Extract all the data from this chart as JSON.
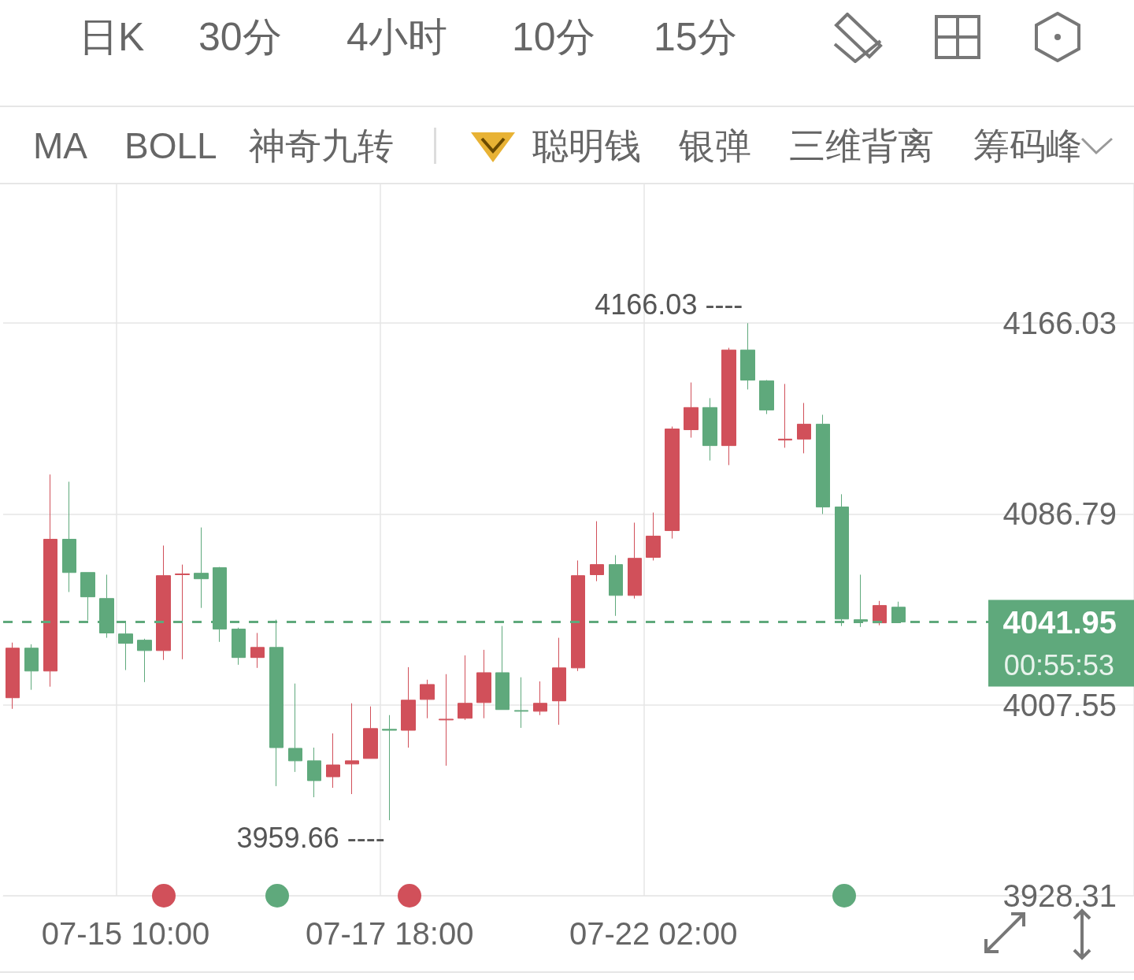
{
  "chart_data": {
    "type": "candlestick",
    "categories": [
      null,
      null,
      null,
      null,
      null,
      null,
      "07-15 10:00",
      null,
      null,
      null,
      null,
      null,
      null,
      null,
      null,
      null,
      null,
      null,
      null,
      null,
      "07-17 18:00",
      null,
      null,
      null,
      null,
      null,
      null,
      null,
      null,
      null,
      null,
      null,
      null,
      null,
      "07-22 02:00",
      null,
      null,
      null,
      null,
      null,
      null,
      null,
      null,
      null,
      null,
      null,
      null,
      null,
      null,
      null,
      null,
      null,
      null,
      null,
      null,
      null,
      null,
      null,
      null,
      null
    ],
    "ohlc": [
      [
        4010.5,
        4033.4,
        4005.9,
        4031.1
      ],
      [
        4031.1,
        4032.7,
        4013.8,
        4021.6
      ],
      [
        4021.6,
        4103.2,
        4015.1,
        4076.3
      ],
      [
        4076.3,
        4100.2,
        4054.4,
        4062.5
      ],
      [
        4062.5,
        4062.5,
        4042.6,
        4052.4
      ],
      [
        4051.7,
        4061.6,
        4035.4,
        4037.4
      ],
      [
        4037.0,
        4041.6,
        4022.0,
        4033.1
      ],
      [
        4034.4,
        4035.0,
        4017.0,
        4030.1
      ],
      [
        4030.1,
        4073.7,
        4026.2,
        4061.2
      ],
      [
        4061.6,
        4065.8,
        4026.5,
        4061.9
      ],
      [
        4062.2,
        4081.2,
        4047.8,
        4059.9
      ],
      [
        4064.5,
        4064.8,
        4033.7,
        4039.0
      ],
      [
        4039.0,
        4039.6,
        4024.2,
        4027.2
      ],
      [
        4027.2,
        4037.4,
        4022.9,
        4031.4
      ],
      [
        4031.4,
        4042.9,
        3973.8,
        3989.8
      ],
      [
        3989.5,
        4016.4,
        3979.7,
        3984.3
      ],
      [
        3984.3,
        3989.8,
        3969.2,
        3976.1
      ],
      [
        3977.7,
        3995.7,
        3973.1,
        3982.6
      ],
      [
        3983.0,
        4008.2,
        3970.5,
        3984.3
      ],
      [
        3985.3,
        4006.9,
        3985.3,
        3997.7
      ],
      [
        3997.4,
        4003.3,
        3959.66,
        3997.0
      ],
      [
        3997.0,
        4023.2,
        3989.8,
        4009.5
      ],
      [
        4009.8,
        4018.0,
        4002.0,
        4016.0
      ],
      [
        4001.3,
        4020.3,
        3982.3,
        4001.6
      ],
      [
        4002.0,
        4028.1,
        4001.3,
        4008.2
      ],
      [
        4008.5,
        4030.4,
        4002.0,
        4020.9
      ],
      [
        4020.9,
        4040.3,
        4005.6,
        4005.6
      ],
      [
        4005.2,
        4019.0,
        3998.0,
        4004.9
      ],
      [
        4004.9,
        4017.3,
        4003.3,
        4008.2
      ],
      [
        4009.2,
        4035.4,
        3999.3,
        4022.9
      ],
      [
        4022.9,
        4067.5,
        4021.6,
        4061.2
      ],
      [
        4061.6,
        4083.8,
        4058.9,
        4065.8
      ],
      [
        4065.8,
        4069.7,
        4044.5,
        4053.0
      ],
      [
        4053.0,
        4083.2,
        4051.7,
        4068.4
      ],
      [
        4068.8,
        4087.4,
        4067.5,
        4077.6
      ],
      [
        4079.9,
        4123.1,
        4076.6,
        4122.1
      ],
      [
        4121.8,
        4141.4,
        4118.5,
        4131.0
      ],
      [
        4131.0,
        4134.9,
        4109.0,
        4115.2
      ],
      [
        4115.2,
        4155.8,
        4107.1,
        4154.9
      ],
      [
        4154.9,
        4166.03,
        4138.5,
        4142.4
      ],
      [
        4142.1,
        4142.4,
        4128.3,
        4130.0
      ],
      [
        4117.5,
        4140.8,
        4114.3,
        4117.9
      ],
      [
        4117.9,
        4132.9,
        4112.0,
        4124.1
      ],
      [
        4124.1,
        4128.0,
        4086.8,
        4089.7
      ],
      [
        4089.7,
        4095.0,
        4040.3,
        4043.2
      ],
      [
        4042.9,
        4061.6,
        4039.9,
        4042.2
      ],
      [
        4041.6,
        4050.7,
        4040.6,
        4048.8
      ],
      [
        4048.1,
        4050.4,
        4041.6,
        4041.95
      ],
      null,
      null,
      null,
      null,
      null,
      null,
      null,
      null,
      null,
      null,
      null,
      null
    ],
    "colors": [
      "#d1505a",
      "#5fa97c",
      "#d1505a",
      "#5fa97c",
      "#5fa97c",
      "#5fa97c",
      "#5fa97c",
      "#5fa97c",
      "#d1505a",
      "#d1505a",
      "#5fa97c",
      "#5fa97c",
      "#5fa97c",
      "#d1505a",
      "#5fa97c",
      "#5fa97c",
      "#5fa97c",
      "#d1505a",
      "#d1505a",
      "#d1505a",
      "#5fa97c",
      "#d1505a",
      "#d1505a",
      "#d1505a",
      "#d1505a",
      "#d1505a",
      "#5fa97c",
      "#5fa97c",
      "#d1505a",
      "#d1505a",
      "#d1505a",
      "#d1505a",
      "#5fa97c",
      "#d1505a",
      "#d1505a",
      "#d1505a",
      "#d1505a",
      "#5fa97c",
      "#d1505a",
      "#5fa97c",
      "#5fa97c",
      "#d1505a",
      "#d1505a",
      "#5fa97c",
      "#5fa97c",
      "#5fa97c",
      "#d1505a",
      "#5fa97c",
      null,
      null,
      null,
      null,
      null,
      null,
      null,
      null,
      null,
      null,
      null,
      null
    ],
    "ylim": [
      3928.31,
      4224
    ],
    "yticks": [
      4166.03,
      4086.79,
      4007.55,
      3928.31
    ],
    "grid": true,
    "ref_lines": [
      {
        "axis": "y",
        "value": 4041.95,
        "label": "4041.95",
        "color": "#5fa97c",
        "line_style": "dashed"
      }
    ],
    "annotations": [
      "日K",
      "30分",
      "4小时",
      "10分",
      "15分",
      "MA",
      "BOLL",
      "神奇九转",
      "聪明钱",
      "银弹",
      "三维背离",
      "筹码峰",
      "4166.03 ----",
      "3959.66 ----",
      "00:55:53"
    ]
  }
}
